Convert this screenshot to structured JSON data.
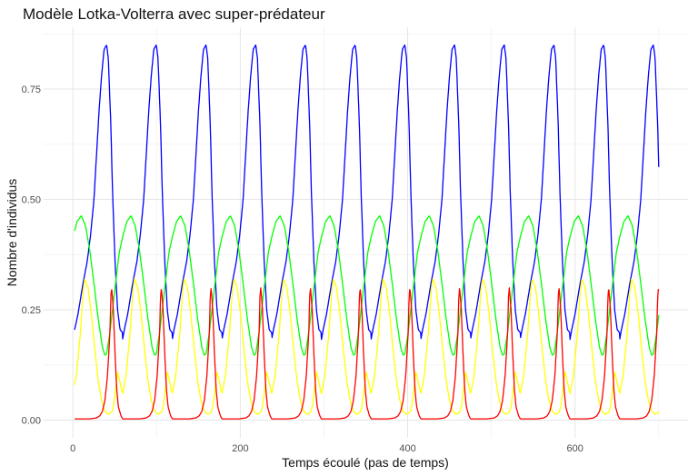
{
  "chart_data": {
    "type": "line",
    "title": "Modèle Lotka-Volterra avec super-prédateur",
    "xlabel": "Temps écoulé (pas de temps)",
    "ylabel": "Nombre d'individus",
    "xlim": [
      -35,
      735
    ],
    "ylim": [
      -0.04,
      0.89
    ],
    "x_ticks": [
      0,
      200,
      400,
      600
    ],
    "x_tick_labels": [
      "0",
      "200",
      "400",
      "600"
    ],
    "y_ticks": [
      0.0,
      0.25,
      0.5,
      0.75
    ],
    "y_tick_labels": [
      "0.00",
      "0.25",
      "0.50",
      "0.75"
    ],
    "grid": true,
    "legend": "none",
    "period": 59.4,
    "x_range": [
      2,
      700
    ],
    "series": [
      {
        "color": "#0000ff",
        "profile_x": [
          0,
          2,
          6,
          12,
          17,
          21,
          25,
          28,
          31,
          34,
          37,
          40,
          42,
          45,
          47,
          50,
          53,
          56,
          59
        ],
        "profile_y": [
          0.183,
          0.205,
          0.24,
          0.31,
          0.36,
          0.42,
          0.5,
          0.6,
          0.7,
          0.78,
          0.84,
          0.85,
          0.82,
          0.67,
          0.52,
          0.36,
          0.25,
          0.205,
          0.198
        ]
      },
      {
        "color": "#00ff00",
        "profile_x": [
          0,
          5,
          10,
          15,
          20,
          25,
          30,
          35,
          38,
          40,
          44,
          50,
          55,
          59
        ],
        "profile_y": [
          0.415,
          0.45,
          0.463,
          0.44,
          0.385,
          0.31,
          0.23,
          0.165,
          0.147,
          0.15,
          0.2,
          0.3,
          0.38,
          0.415
        ]
      },
      {
        "color": "#ffff00",
        "profile_x": [
          0,
          4,
          9,
          12,
          14,
          18,
          22,
          26,
          30,
          34,
          38,
          42,
          46,
          48,
          50,
          53,
          56,
          59
        ],
        "profile_y": [
          0.06,
          0.1,
          0.2,
          0.29,
          0.32,
          0.3,
          0.24,
          0.16,
          0.09,
          0.045,
          0.02,
          0.013,
          0.018,
          0.03,
          0.06,
          0.11,
          0.085,
          0.06
        ]
      },
      {
        "color": "#ff0000",
        "profile_x": [
          0,
          20,
          28,
          32,
          35,
          38,
          41,
          44,
          45,
          46,
          48,
          50,
          52,
          54,
          57,
          59
        ],
        "profile_y": [
          0.003,
          0.003,
          0.005,
          0.01,
          0.02,
          0.045,
          0.1,
          0.2,
          0.28,
          0.3,
          0.25,
          0.15,
          0.07,
          0.03,
          0.01,
          0.003
        ]
      }
    ]
  }
}
